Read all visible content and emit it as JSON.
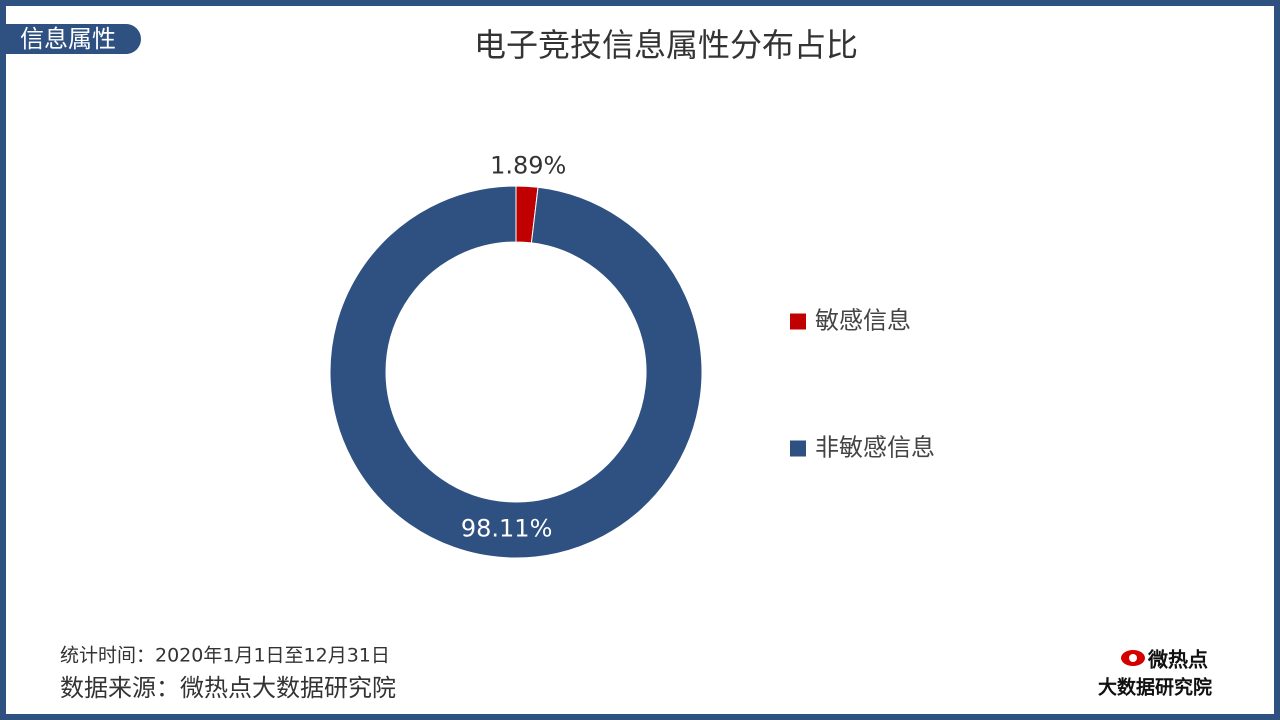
{
  "header": {
    "tag": "信息属性"
  },
  "chart_data": {
    "type": "pie",
    "donut": true,
    "title": "电子竞技信息属性分布占比",
    "categories": [
      "敏感信息",
      "非敏感信息"
    ],
    "values": [
      1.89,
      98.11
    ],
    "value_labels": [
      "1.89%",
      "98.11%"
    ],
    "colors": [
      "#c00000",
      "#2e5182"
    ],
    "legend": "right"
  },
  "footer": {
    "period": "统计时间：2020年1月1日至12月31日",
    "source": "数据来源：微热点大数据研究院"
  },
  "logo": {
    "brand": "微热点",
    "institute": "大数据研究院"
  }
}
